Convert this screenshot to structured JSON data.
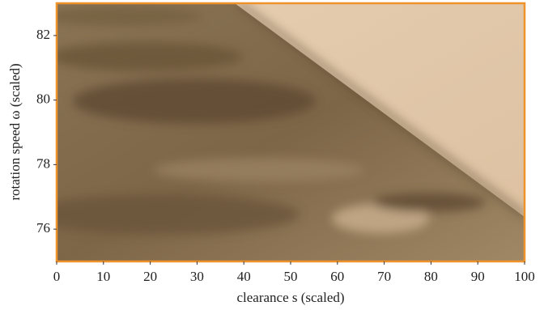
{
  "chart_data": {
    "type": "image",
    "xlabel": "clearance s (scaled)",
    "ylabel": "rotation speed ω (scaled)",
    "xlim": [
      0,
      100
    ],
    "xticks": [
      0,
      10,
      20,
      30,
      40,
      50,
      60,
      70,
      80,
      90,
      100
    ],
    "ylim": [
      75,
      83
    ],
    "yticks": [
      76,
      78,
      80,
      82
    ],
    "frame_color": "#f0922a"
  }
}
